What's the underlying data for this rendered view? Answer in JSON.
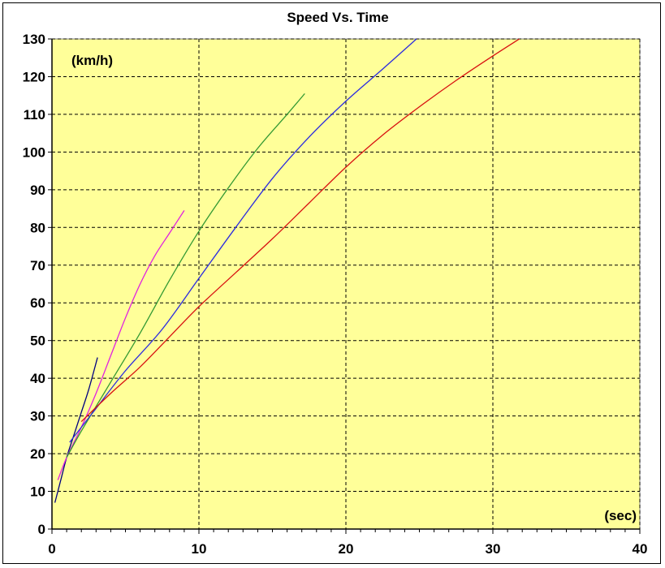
{
  "chart_data": {
    "type": "line",
    "title": "Speed Vs. Time",
    "xlabel": "(sec)",
    "ylabel": "(km/h)",
    "xlim": [
      0,
      40
    ],
    "ylim": [
      0,
      130
    ],
    "x_ticks": [
      0,
      10,
      20,
      30,
      40
    ],
    "y_ticks": [
      0,
      10,
      20,
      30,
      40,
      50,
      60,
      70,
      80,
      90,
      100,
      110,
      120,
      130
    ],
    "grid": true,
    "grid_style": "dashed",
    "background": "#ffff99",
    "legend": "none",
    "series": [
      {
        "color": "#000080",
        "points": [
          [
            0.2,
            7
          ],
          [
            0.6,
            13
          ],
          [
            1.0,
            19
          ],
          [
            1.5,
            25
          ],
          [
            2.0,
            31
          ],
          [
            2.5,
            37
          ],
          [
            3.1,
            45.5
          ]
        ]
      },
      {
        "color": "#e020e0",
        "points": [
          [
            0.4,
            13
          ],
          [
            1.0,
            19
          ],
          [
            2.0,
            27
          ],
          [
            3.0,
            36
          ],
          [
            4.0,
            46
          ],
          [
            5.0,
            56
          ],
          [
            6.0,
            65
          ],
          [
            7.0,
            72.5
          ],
          [
            8.0,
            78.5
          ],
          [
            9.0,
            84.5
          ]
        ]
      },
      {
        "color": "#339933",
        "points": [
          [
            1.0,
            19
          ],
          [
            2.0,
            26
          ],
          [
            4.0,
            39
          ],
          [
            6.0,
            52
          ],
          [
            8.0,
            66
          ],
          [
            10.0,
            79
          ],
          [
            12.0,
            90.5
          ],
          [
            14.0,
            101
          ],
          [
            16.0,
            110
          ],
          [
            17.2,
            115.5
          ]
        ]
      },
      {
        "color": "#2a2ae0",
        "points": [
          [
            1.2,
            23
          ],
          [
            3.0,
            32
          ],
          [
            5.0,
            42
          ],
          [
            7.5,
            53
          ],
          [
            10.0,
            66.5
          ],
          [
            12.5,
            80
          ],
          [
            15.0,
            93
          ],
          [
            17.5,
            104
          ],
          [
            20.0,
            113.5
          ],
          [
            22.5,
            122
          ],
          [
            24.8,
            130
          ]
        ]
      },
      {
        "color": "#d81010",
        "points": [
          [
            2.0,
            28.5
          ],
          [
            4.0,
            36
          ],
          [
            6.0,
            43
          ],
          [
            8.0,
            51
          ],
          [
            10.0,
            59
          ],
          [
            12.5,
            68
          ],
          [
            15.0,
            77
          ],
          [
            17.5,
            86.5
          ],
          [
            20.0,
            96
          ],
          [
            22.5,
            104.5
          ],
          [
            25.0,
            112
          ],
          [
            27.5,
            119
          ],
          [
            30.0,
            125.5
          ],
          [
            31.8,
            130
          ]
        ]
      }
    ]
  }
}
